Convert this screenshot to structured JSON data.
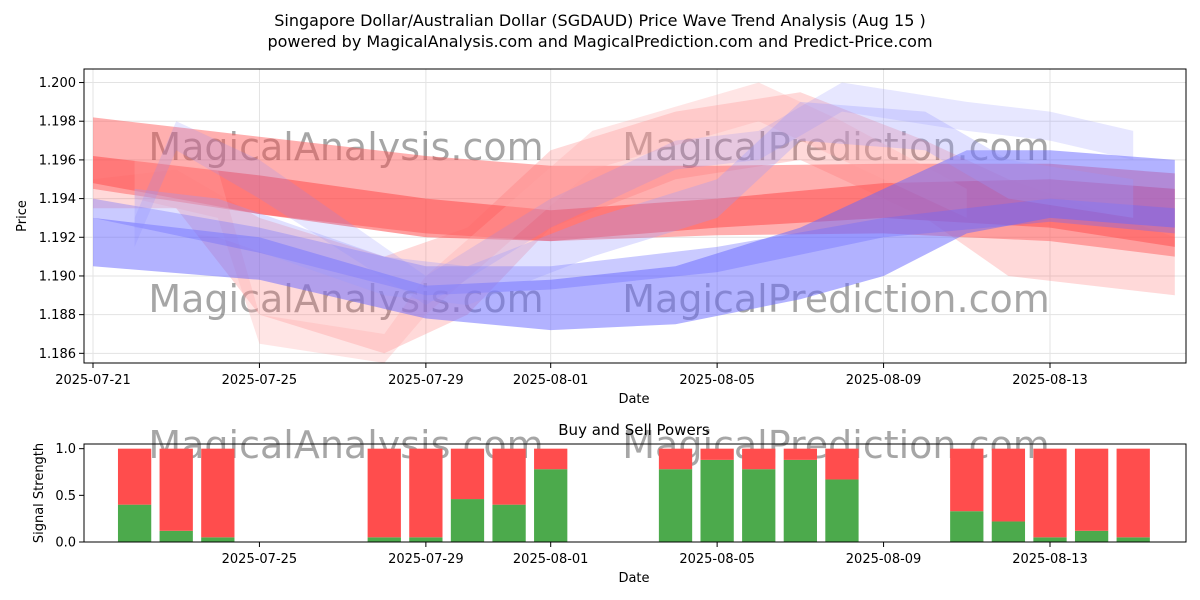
{
  "title_line1": "Singapore Dollar/Australian Dollar (SGDAUD) Price Wave Trend Analysis (Aug 15 )",
  "title_line2": "powered by MagicalAnalysis.com and MagicalPrediction.com and Predict-Price.com",
  "watermarks": [
    "MagicalAnalysis.com",
    "MagicalPrediction.com"
  ],
  "chart_data": [
    {
      "type": "area",
      "title": "",
      "xlabel": "Date",
      "ylabel": "Price",
      "ylim": [
        1.1855,
        1.2007
      ],
      "xlim": [
        "2025-07-21",
        "2025-08-17"
      ],
      "x_ticks": [
        "2025-07-21",
        "2025-07-25",
        "2025-07-29",
        "2025-08-01",
        "2025-08-05",
        "2025-08-09",
        "2025-08-13"
      ],
      "y_ticks": [
        "1.186",
        "1.188",
        "1.190",
        "1.192",
        "1.194",
        "1.196",
        "1.198",
        "1.200"
      ],
      "grid": true,
      "series": [
        {
          "color": "#ff4d4d",
          "x": [
            "2025-07-21",
            "2025-07-25",
            "2025-07-29",
            "2025-08-01",
            "2025-08-05",
            "2025-08-09",
            "2025-08-13",
            "2025-08-16"
          ],
          "upper": [
            1.1982,
            1.1972,
            1.1962,
            1.1957,
            1.1957,
            1.1958,
            1.1958,
            1.1953
          ],
          "lower": [
            1.1945,
            1.1932,
            1.1922,
            1.1918,
            1.1921,
            1.1922,
            1.1918,
            1.191
          ],
          "opacity": 0.45
        },
        {
          "color": "#ff4d4d",
          "x": [
            "2025-07-21",
            "2025-07-25",
            "2025-07-29",
            "2025-08-01",
            "2025-08-05",
            "2025-08-09",
            "2025-08-13",
            "2025-08-16"
          ],
          "upper": [
            1.1962,
            1.1952,
            1.194,
            1.1934,
            1.194,
            1.1948,
            1.195,
            1.1945
          ],
          "lower": [
            1.1948,
            1.1932,
            1.192,
            1.1918,
            1.1925,
            1.193,
            1.1925,
            1.1915
          ],
          "opacity": 0.55
        },
        {
          "color": "#ff6666",
          "x": [
            "2025-07-21",
            "2025-07-23",
            "2025-07-25",
            "2025-07-28",
            "2025-07-30",
            "2025-08-01",
            "2025-08-04",
            "2025-08-07",
            "2025-08-10",
            "2025-08-12",
            "2025-08-16"
          ],
          "upper": [
            1.195,
            1.1955,
            1.193,
            1.191,
            1.1925,
            1.1965,
            1.1985,
            1.1995,
            1.197,
            1.195,
            1.192
          ],
          "lower": [
            1.1935,
            1.1935,
            1.188,
            1.186,
            1.188,
            1.1925,
            1.195,
            1.196,
            1.193,
            1.19,
            1.189
          ],
          "opacity": 0.25
        },
        {
          "color": "#ffaaaa",
          "x": [
            "2025-07-22",
            "2025-07-24",
            "2025-07-25",
            "2025-07-28",
            "2025-07-29",
            "2025-08-02",
            "2025-08-06",
            "2025-08-08",
            "2025-08-11"
          ],
          "upper": [
            1.196,
            1.1955,
            1.188,
            1.187,
            1.19,
            1.1975,
            1.2,
            1.198,
            1.1945
          ],
          "lower": [
            1.194,
            1.193,
            1.1865,
            1.1855,
            1.188,
            1.1955,
            1.198,
            1.196,
            1.193
          ],
          "opacity": 0.3
        },
        {
          "color": "#6666ff",
          "x": [
            "2025-07-21",
            "2025-07-25",
            "2025-07-29",
            "2025-08-01",
            "2025-08-04",
            "2025-08-07",
            "2025-08-09",
            "2025-08-11",
            "2025-08-13",
            "2025-08-16"
          ],
          "upper": [
            1.193,
            1.192,
            1.1895,
            1.1898,
            1.1905,
            1.1925,
            1.1945,
            1.1965,
            1.1965,
            1.196
          ],
          "lower": [
            1.1905,
            1.1898,
            1.1878,
            1.1872,
            1.1875,
            1.1888,
            1.19,
            1.1922,
            1.193,
            1.1925
          ],
          "opacity": 0.5
        },
        {
          "color": "#6666ff",
          "x": [
            "2025-07-21",
            "2025-07-25",
            "2025-07-29",
            "2025-08-01",
            "2025-08-05",
            "2025-08-09",
            "2025-08-13",
            "2025-08-16"
          ],
          "upper": [
            1.194,
            1.1925,
            1.1905,
            1.1905,
            1.1915,
            1.193,
            1.194,
            1.1935
          ],
          "lower": [
            1.193,
            1.1912,
            1.189,
            1.1893,
            1.1902,
            1.192,
            1.1928,
            1.1922
          ],
          "opacity": 0.35
        },
        {
          "color": "#8888ff",
          "x": [
            "2025-07-22",
            "2025-07-23",
            "2025-07-25",
            "2025-07-29",
            "2025-08-01",
            "2025-08-04",
            "2025-08-06",
            "2025-08-08",
            "2025-08-11",
            "2025-08-13",
            "2025-08-15"
          ],
          "upper": [
            1.193,
            1.198,
            1.196,
            1.19,
            1.194,
            1.197,
            1.1975,
            1.2,
            1.199,
            1.1985,
            1.1975
          ],
          "lower": [
            1.1915,
            1.1965,
            1.194,
            1.1885,
            1.1925,
            1.1955,
            1.196,
            1.1985,
            1.1975,
            1.197,
            1.196
          ],
          "opacity": 0.2
        },
        {
          "color": "#9999ff",
          "x": [
            "2025-07-22",
            "2025-07-24",
            "2025-07-28",
            "2025-07-30",
            "2025-08-02",
            "2025-08-05",
            "2025-08-07",
            "2025-08-10",
            "2025-08-12",
            "2025-08-15"
          ],
          "upper": [
            1.1945,
            1.194,
            1.191,
            1.1905,
            1.193,
            1.195,
            1.199,
            1.1985,
            1.196,
            1.195
          ],
          "lower": [
            1.1925,
            1.192,
            1.189,
            1.1885,
            1.191,
            1.193,
            1.197,
            1.1965,
            1.194,
            1.193
          ],
          "opacity": 0.3
        }
      ]
    },
    {
      "type": "bar",
      "title": "Buy and Sell Powers",
      "xlabel": "Date",
      "ylabel": "Signal Strength",
      "ylim": [
        0,
        1.05
      ],
      "y_ticks": [
        "0.0",
        "0.5",
        "1.0"
      ],
      "x_ticks": [
        "2025-07-25",
        "2025-07-29",
        "2025-08-01",
        "2025-08-05",
        "2025-08-09",
        "2025-08-13"
      ],
      "categories": [
        "2025-07-22",
        "2025-07-23",
        "2025-07-24",
        "2025-07-28",
        "2025-07-29",
        "2025-07-30",
        "2025-07-31",
        "2025-08-01",
        "2025-08-04",
        "2025-08-05",
        "2025-08-06",
        "2025-08-07",
        "2025-08-08",
        "2025-08-11",
        "2025-08-12",
        "2025-08-13",
        "2025-08-14",
        "2025-08-15"
      ],
      "series": [
        {
          "color": "#4caa4c",
          "values": [
            0.4,
            0.12,
            0.05,
            0.05,
            0.05,
            0.46,
            0.4,
            0.78,
            0.78,
            0.88,
            0.78,
            0.88,
            0.67,
            0.33,
            0.22,
            0.05,
            0.12,
            0.05
          ]
        },
        {
          "color": "#ff4d4d",
          "values": [
            0.6,
            0.88,
            0.95,
            0.95,
            0.95,
            0.54,
            0.6,
            0.22,
            0.22,
            0.12,
            0.22,
            0.12,
            0.33,
            0.67,
            0.78,
            0.95,
            0.88,
            0.95
          ]
        }
      ]
    }
  ]
}
